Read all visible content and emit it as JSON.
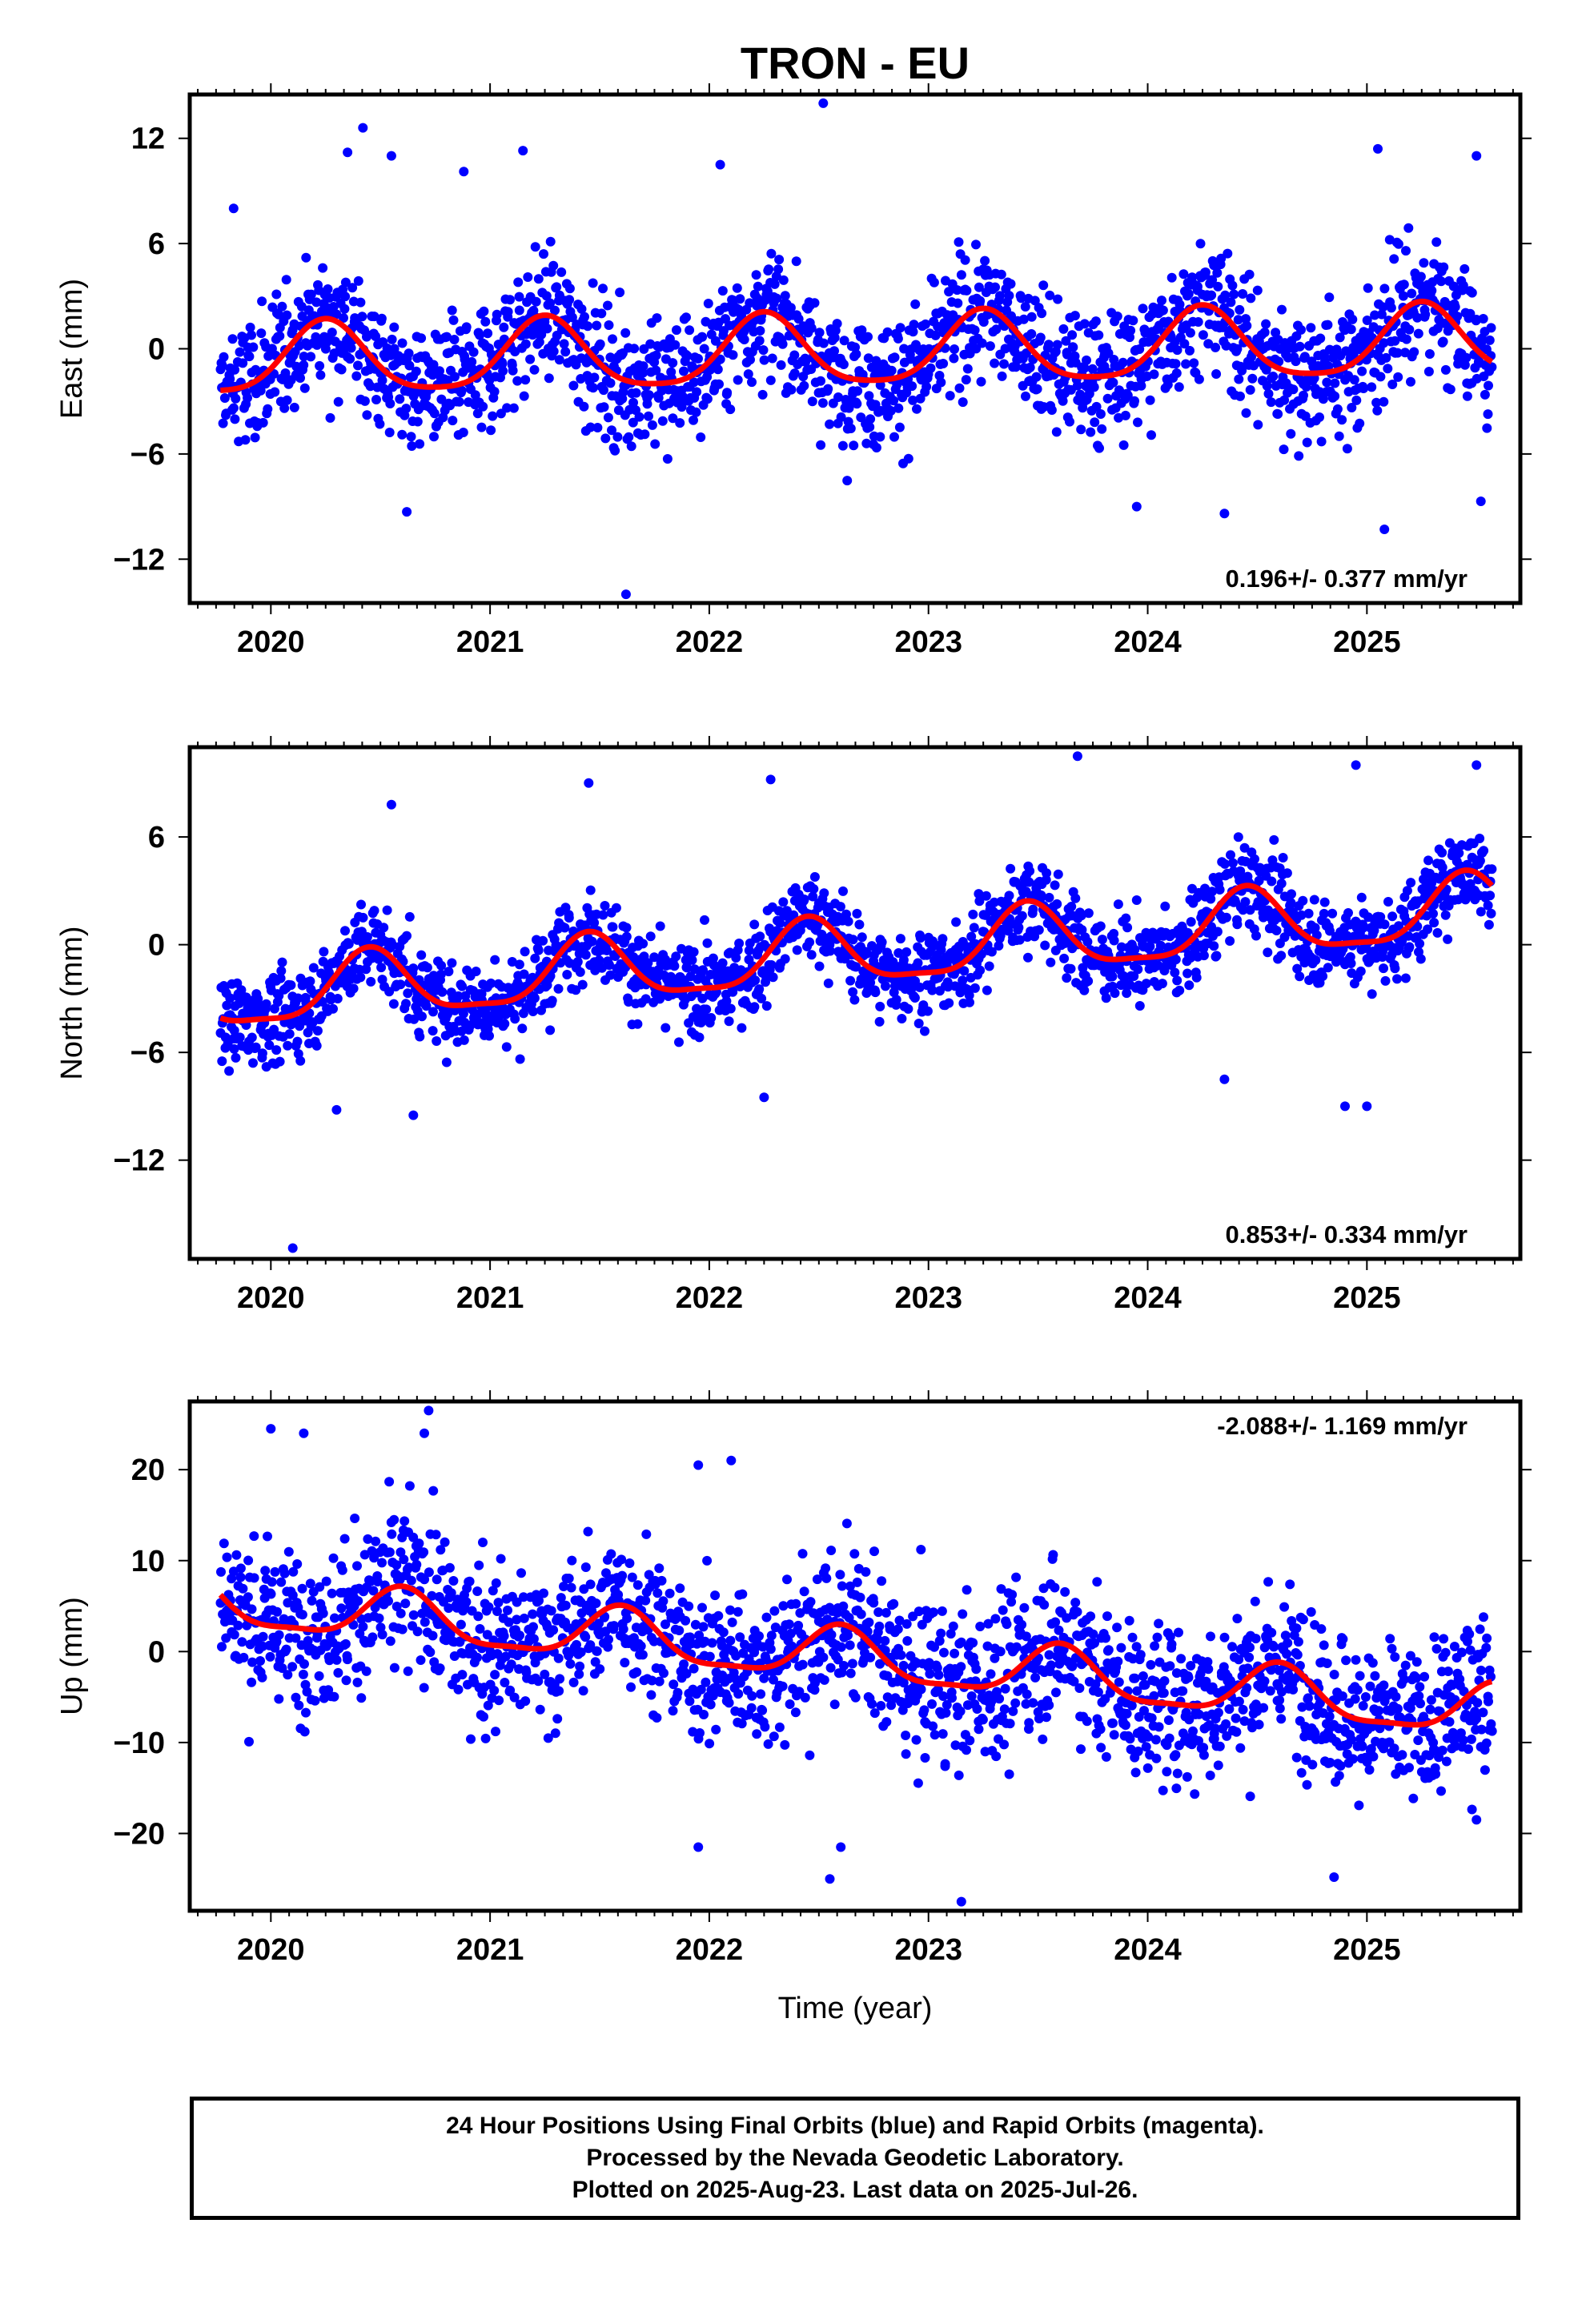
{
  "title": "TRON - EU",
  "x_axis_title": "Time (year)",
  "colors": {
    "data": "#0000ff",
    "fit": "#ff0000",
    "frame": "#000000"
  },
  "footer": {
    "line1": "24 Hour Positions Using Final Orbits (blue) and Rapid Orbits (magenta).",
    "line2": "Processed by the Nevada Geodetic Laboratory.",
    "line3": "Plotted on 2025-Aug-23. Last data on 2025-Jul-26."
  },
  "chart_data": [
    {
      "type": "scatter",
      "component": "east",
      "ylabel": "East (mm)",
      "xlim": [
        2019.63,
        2025.7
      ],
      "ylim": [
        -14.5,
        14.5
      ],
      "yticks": [
        -12,
        -6,
        0,
        6,
        12
      ],
      "yticklabels": [
        "−12",
        "−6",
        "0",
        "6",
        "12"
      ],
      "xticks": [
        2020,
        2021,
        2022,
        2023,
        2024,
        2025
      ],
      "xticklabels": [
        "2020",
        "2021",
        "2022",
        "2023",
        "2024",
        "2025"
      ],
      "rate_label": "0.196+/- 0.377 mm/yr",
      "rate_position": "bottom-right",
      "model": {
        "rate": 0.196,
        "offset": -0.2,
        "t0": 2022.7,
        "annual_amp": 2.0,
        "annual_peak": 2020.25,
        "semi_amp": 0.4,
        "semi_peak": 2020.25
      },
      "scatter_sigma": 2.6,
      "data_range": [
        2019.77,
        2025.57
      ],
      "outliers": [
        [
          2020.35,
          11.2
        ],
        [
          2020.42,
          12.6
        ],
        [
          2020.55,
          11.0
        ],
        [
          2021.15,
          11.3
        ],
        [
          2022.05,
          10.5
        ],
        [
          2022.52,
          14.0
        ],
        [
          2025.05,
          11.4
        ],
        [
          2025.5,
          11.0
        ],
        [
          2020.62,
          -9.3
        ],
        [
          2021.62,
          -14.0
        ],
        [
          2023.95,
          -9.0
        ],
        [
          2025.08,
          -10.3
        ],
        [
          2025.52,
          -8.7
        ],
        [
          2024.35,
          -9.4
        ],
        [
          2019.83,
          8.0
        ],
        [
          2020.88,
          10.1
        ]
      ],
      "grid": false,
      "legend": "none"
    },
    {
      "type": "scatter",
      "component": "north",
      "ylabel": "North (mm)",
      "xlim": [
        2019.63,
        2025.7
      ],
      "ylim": [
        -17.5,
        11.0
      ],
      "yticks": [
        -12,
        -6,
        0,
        6
      ],
      "yticklabels": [
        "−12",
        "−6",
        "0",
        "6"
      ],
      "xticks": [
        2020,
        2021,
        2022,
        2023,
        2024,
        2025
      ],
      "xticklabels": [
        "2020",
        "2021",
        "2022",
        "2023",
        "2024",
        "2025"
      ],
      "rate_label": "0.853+/- 0.334 mm/yr",
      "rate_position": "bottom-right",
      "model": {
        "rate": 0.853,
        "offset": -0.5,
        "t0": 2022.7,
        "annual_amp": 1.8,
        "annual_peak": 2020.45,
        "semi_amp": 0.5,
        "semi_peak": 2020.45
      },
      "scatter_sigma": 1.7,
      "data_range": [
        2019.77,
        2025.57
      ],
      "outliers": [
        [
          2020.1,
          -16.9
        ],
        [
          2020.3,
          -9.2
        ],
        [
          2020.65,
          -9.5
        ],
        [
          2020.55,
          7.8
        ],
        [
          2021.45,
          9.0
        ],
        [
          2022.28,
          9.2
        ],
        [
          2023.68,
          10.5
        ],
        [
          2024.95,
          10.0
        ],
        [
          2025.5,
          10.0
        ],
        [
          2024.35,
          -7.5
        ],
        [
          2024.9,
          -9.0
        ],
        [
          2025.0,
          -9.0
        ],
        [
          2022.25,
          -8.5
        ]
      ],
      "grid": false,
      "legend": "none"
    },
    {
      "type": "scatter",
      "component": "up",
      "ylabel": "Up (mm)",
      "xlim": [
        2019.63,
        2025.7
      ],
      "ylim": [
        -28.5,
        27.5
      ],
      "yticks": [
        -20,
        -10,
        0,
        10,
        20
      ],
      "yticklabels": [
        "−20",
        "−10",
        "0",
        "10",
        "20"
      ],
      "xticks": [
        2020,
        2021,
        2022,
        2023,
        2024,
        2025
      ],
      "xticklabels": [
        "2020",
        "2021",
        "2022",
        "2023",
        "2024",
        "2025"
      ],
      "rate_label": "-2.088+/- 1.169 mm/yr",
      "rate_position": "top-right",
      "model": {
        "rate": -2.088,
        "offset": -0.8,
        "t0": 2022.7,
        "annual_amp": 2.8,
        "annual_peak": 2020.6,
        "semi_amp": 0.8,
        "semi_peak": 2020.6
      },
      "scatter_sigma": 6.0,
      "data_range": [
        2019.77,
        2025.57
      ],
      "outliers": [
        [
          2020.0,
          24.5
        ],
        [
          2020.15,
          24.0
        ],
        [
          2020.72,
          26.5
        ],
        [
          2020.7,
          24.0
        ],
        [
          2021.95,
          20.5
        ],
        [
          2022.1,
          21.0
        ],
        [
          2022.55,
          -25.0
        ],
        [
          2022.6,
          -21.5
        ],
        [
          2023.15,
          -27.5
        ],
        [
          2021.95,
          -21.5
        ],
        [
          2024.85,
          -24.8
        ],
        [
          2025.5,
          -18.5
        ]
      ],
      "grid": false,
      "legend": "none"
    }
  ]
}
